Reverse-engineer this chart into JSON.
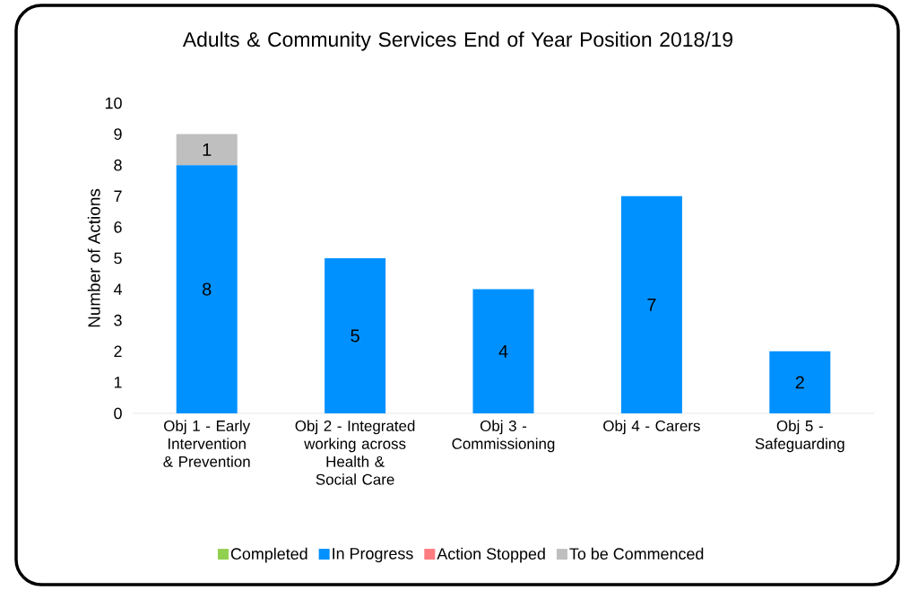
{
  "chart_data": {
    "type": "bar",
    "stacked": true,
    "title": "Adults & Community Services End of Year Position 2018/19",
    "ylabel": "Number of Actions",
    "categories": [
      "Obj 1 - Early Intervention & Prevention",
      "Obj 2 - Integrated working across Health & Social Care",
      "Obj 3 - Commissioning",
      "Obj 4 - Carers",
      "Obj 5 - Safeguarding"
    ],
    "series": [
      {
        "name": "Completed",
        "color": "#92d050",
        "values": [
          0,
          0,
          0,
          0,
          0
        ]
      },
      {
        "name": "In Progress",
        "color": "#0091ff",
        "values": [
          8,
          5,
          4,
          7,
          2
        ],
        "value_labels": [
          "8",
          "5",
          "4",
          "7",
          "2"
        ]
      },
      {
        "name": "Action Stopped",
        "color": "#ff7c80",
        "values": [
          0,
          0,
          0,
          0,
          0
        ]
      },
      {
        "name": "To be Commenced",
        "color": "#bfbfbf",
        "values": [
          1,
          0,
          0,
          0,
          0
        ],
        "value_labels": [
          "1",
          null,
          null,
          null,
          null
        ]
      }
    ],
    "ylim": [
      0,
      10
    ],
    "yticks": [
      0,
      1,
      2,
      3,
      4,
      5,
      6,
      7,
      8,
      9,
      10
    ],
    "legend": "bottom"
  }
}
